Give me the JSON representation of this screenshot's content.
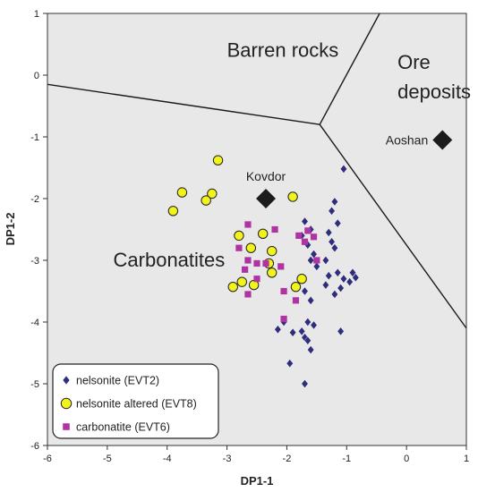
{
  "chart_data": {
    "type": "scatter",
    "title": "",
    "xlabel": "DP1-1",
    "ylabel": "DP1-2",
    "xlim": [
      -6,
      1
    ],
    "ylim": [
      -6,
      1
    ],
    "x_ticks": [
      "-6",
      "-5",
      "-4",
      "-3",
      "-2",
      "-1",
      "0",
      "1"
    ],
    "y_ticks": [
      "1",
      "0",
      "-1",
      "-2",
      "-3",
      "-4",
      "-5",
      "-6"
    ],
    "grid": false,
    "background_color": "#e8e8e8",
    "regions": [
      {
        "label": "Barren rocks",
        "label_lines": [
          "Barren rocks"
        ],
        "anchor": [
          -3,
          0.3
        ]
      },
      {
        "label": "Ore deposits",
        "label_lines": [
          "Ore",
          "deposits"
        ],
        "anchor": [
          -0.15,
          0.1
        ]
      },
      {
        "label": "Carbonatites",
        "label_lines": [
          "Carbonatites"
        ],
        "anchor": [
          -4.9,
          -3.1
        ]
      }
    ],
    "boundary_lines": [
      [
        [
          -6,
          -0.15
        ],
        [
          -1.45,
          -0.8
        ]
      ],
      [
        [
          -1.45,
          -0.8
        ],
        [
          -0.45,
          1
        ]
      ],
      [
        [
          -1.45,
          -0.8
        ],
        [
          1,
          -4.1
        ]
      ]
    ],
    "reference_points": [
      {
        "label": "Kovdor",
        "x": -2.35,
        "y": -2.0
      },
      {
        "label": "Aoshan",
        "x": 0.6,
        "y": -1.05
      }
    ],
    "legend_position": "bottom-left",
    "series": [
      {
        "name": "nelsonite (EVT2)",
        "marker": "diamond",
        "color": "#2e2e7a",
        "points": [
          [
            -1.05,
            -1.52
          ],
          [
            -1.7,
            -2.37
          ],
          [
            -1.2,
            -2.05
          ],
          [
            -1.25,
            -2.2
          ],
          [
            -1.15,
            -2.4
          ],
          [
            -1.6,
            -2.5
          ],
          [
            -1.3,
            -2.55
          ],
          [
            -1.75,
            -2.6
          ],
          [
            -1.25,
            -2.7
          ],
          [
            -1.65,
            -2.75
          ],
          [
            -1.2,
            -2.8
          ],
          [
            -1.55,
            -2.9
          ],
          [
            -1.6,
            -3.0
          ],
          [
            -1.35,
            -3.0
          ],
          [
            -1.5,
            -3.1
          ],
          [
            -1.15,
            -3.2
          ],
          [
            -1.3,
            -3.25
          ],
          [
            -0.9,
            -3.2
          ],
          [
            -1.05,
            -3.3
          ],
          [
            -0.95,
            -3.35
          ],
          [
            -0.85,
            -3.28
          ],
          [
            -1.35,
            -3.4
          ],
          [
            -1.1,
            -3.45
          ],
          [
            -1.2,
            -3.55
          ],
          [
            -1.7,
            -3.5
          ],
          [
            -1.6,
            -3.65
          ],
          [
            -1.65,
            -4.0
          ],
          [
            -1.55,
            -4.05
          ],
          [
            -2.05,
            -4.0
          ],
          [
            -2.15,
            -4.12
          ],
          [
            -1.9,
            -4.17
          ],
          [
            -1.75,
            -4.15
          ],
          [
            -1.7,
            -4.25
          ],
          [
            -1.65,
            -4.3
          ],
          [
            -1.1,
            -4.15
          ],
          [
            -1.6,
            -4.45
          ],
          [
            -1.95,
            -4.67
          ],
          [
            -1.7,
            -5.0
          ]
        ]
      },
      {
        "name": "nelsonite altered (EVT8)",
        "marker": "circle",
        "color": "#f3f31c",
        "points": [
          [
            -3.15,
            -1.38
          ],
          [
            -3.75,
            -1.9
          ],
          [
            -3.25,
            -1.92
          ],
          [
            -3.35,
            -2.03
          ],
          [
            -3.9,
            -2.2
          ],
          [
            -1.9,
            -1.97
          ],
          [
            -2.8,
            -2.6
          ],
          [
            -2.6,
            -2.8
          ],
          [
            -2.4,
            -2.57
          ],
          [
            -2.25,
            -2.85
          ],
          [
            -2.3,
            -3.05
          ],
          [
            -2.75,
            -3.35
          ],
          [
            -2.55,
            -3.4
          ],
          [
            -2.9,
            -3.43
          ],
          [
            -1.75,
            -3.3
          ],
          [
            -1.85,
            -3.43
          ],
          [
            -2.25,
            -3.2
          ]
        ]
      },
      {
        "name": "carbonatite (EVT6)",
        "marker": "square",
        "color": "#b033a3",
        "points": [
          [
            -2.65,
            -2.42
          ],
          [
            -2.2,
            -2.5
          ],
          [
            -1.65,
            -2.52
          ],
          [
            -1.8,
            -2.6
          ],
          [
            -1.55,
            -2.62
          ],
          [
            -1.7,
            -2.7
          ],
          [
            -2.8,
            -2.8
          ],
          [
            -2.65,
            -3.0
          ],
          [
            -2.5,
            -3.05
          ],
          [
            -2.35,
            -3.05
          ],
          [
            -1.5,
            -3.0
          ],
          [
            -2.1,
            -3.1
          ],
          [
            -2.7,
            -3.15
          ],
          [
            -2.5,
            -3.3
          ],
          [
            -2.05,
            -3.5
          ],
          [
            -2.65,
            -3.55
          ],
          [
            -1.85,
            -3.65
          ],
          [
            -2.05,
            -3.95
          ]
        ]
      }
    ]
  }
}
